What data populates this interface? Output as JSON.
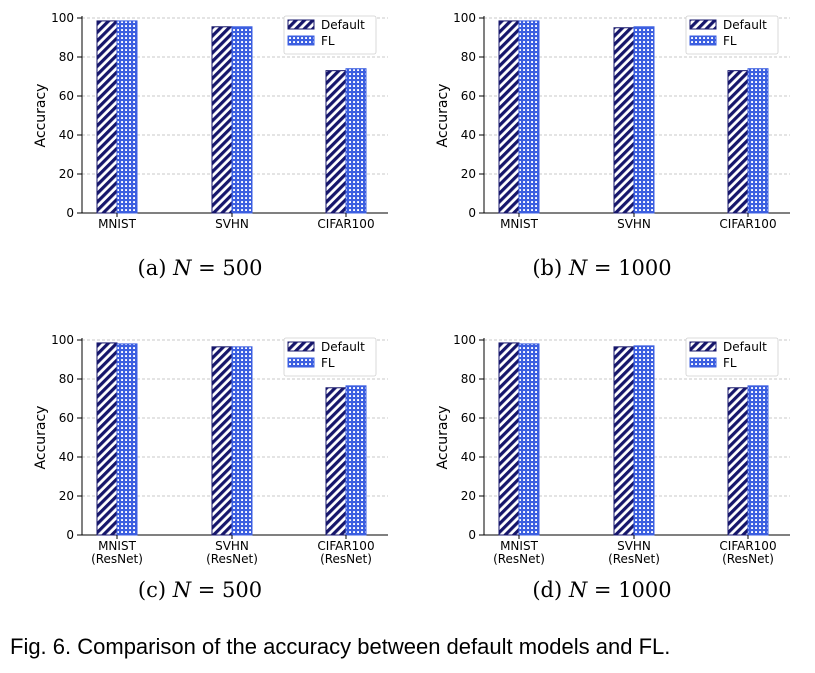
{
  "chart_data": [
    {
      "type": "bar",
      "categories": [
        [
          "MNIST"
        ],
        [
          "SVHN"
        ],
        [
          "CIFAR100"
        ]
      ],
      "series": [
        {
          "name": "Default",
          "values": [
            98.5,
            95.5,
            73.0
          ]
        },
        {
          "name": "FL",
          "values": [
            98.5,
            95.5,
            74.0
          ]
        }
      ],
      "ylabel": "Accuracy",
      "ylim": [
        0,
        100
      ],
      "yticks": [
        0,
        20,
        40,
        60,
        80,
        100
      ],
      "caption": {
        "prefix": "(a) ",
        "var": "N",
        "eq": " = 500"
      }
    },
    {
      "type": "bar",
      "categories": [
        [
          "MNIST"
        ],
        [
          "SVHN"
        ],
        [
          "CIFAR100"
        ]
      ],
      "series": [
        {
          "name": "Default",
          "values": [
            98.5,
            95.0,
            73.0
          ]
        },
        {
          "name": "FL",
          "values": [
            98.5,
            95.5,
            74.0
          ]
        }
      ],
      "ylabel": "Accuracy",
      "ylim": [
        0,
        100
      ],
      "yticks": [
        0,
        20,
        40,
        60,
        80,
        100
      ],
      "caption": {
        "prefix": "(b) ",
        "var": "N",
        "eq": " = 1000"
      }
    },
    {
      "type": "bar",
      "categories": [
        [
          "MNIST",
          "(ResNet)"
        ],
        [
          "SVHN",
          "(ResNet)"
        ],
        [
          "CIFAR100",
          "(ResNet)"
        ]
      ],
      "series": [
        {
          "name": "Default",
          "values": [
            98.5,
            96.5,
            75.5
          ]
        },
        {
          "name": "FL",
          "values": [
            98.0,
            96.5,
            76.5
          ]
        }
      ],
      "ylabel": "Accuracy",
      "ylim": [
        0,
        100
      ],
      "yticks": [
        0,
        20,
        40,
        60,
        80,
        100
      ],
      "caption": {
        "prefix": "(c) ",
        "var": "N",
        "eq": " = 500"
      }
    },
    {
      "type": "bar",
      "categories": [
        [
          "MNIST",
          "(ResNet)"
        ],
        [
          "SVHN",
          "(ResNet)"
        ],
        [
          "CIFAR100",
          "(ResNet)"
        ]
      ],
      "series": [
        {
          "name": "Default",
          "values": [
            98.5,
            96.5,
            75.5
          ]
        },
        {
          "name": "FL",
          "values": [
            98.0,
            97.0,
            76.5
          ]
        }
      ],
      "ylabel": "Accuracy",
      "ylim": [
        0,
        100
      ],
      "yticks": [
        0,
        20,
        40,
        60,
        80,
        100
      ],
      "caption": {
        "prefix": "(d) ",
        "var": "N",
        "eq": " = 1000"
      }
    }
  ],
  "colors": {
    "default_bar": "#16166b",
    "fl_bar": "#3c5fe0",
    "grid": "#b8b8b8"
  },
  "figure_caption": "Fig. 6. Comparison of the accuracy between default models and FL."
}
